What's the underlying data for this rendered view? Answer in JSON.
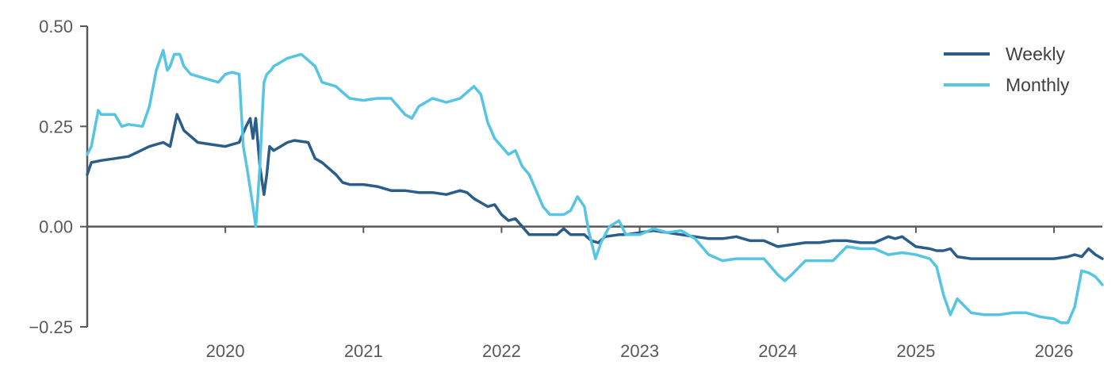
{
  "colors": {
    "weekly": "#2b5d8a",
    "monthly": "#56c4e3",
    "axis": "#595959"
  },
  "chart_data": {
    "type": "line",
    "title": "",
    "xlabel": "",
    "ylabel": "",
    "xlim": [
      2019.0,
      2026.35
    ],
    "ylim": [
      -0.25,
      0.5
    ],
    "y_ticks": [
      0.5,
      0.25,
      0.0,
      -0.25
    ],
    "y_tick_labels": [
      "0.50",
      "0.25",
      "0.00",
      "−0.25"
    ],
    "x_ticks": [
      2020,
      2021,
      2022,
      2023,
      2024,
      2025,
      2026
    ],
    "x_tick_labels": [
      "2020",
      "2021",
      "2022",
      "2023",
      "2024",
      "2025",
      "2026"
    ],
    "grid": false,
    "legend_position": "top-right",
    "series": [
      {
        "name": "Weekly",
        "color": "#2b5d8a",
        "x": [
          2019.0,
          2019.03,
          2019.1,
          2019.2,
          2019.3,
          2019.45,
          2019.55,
          2019.6,
          2019.65,
          2019.7,
          2019.8,
          2019.9,
          2020.0,
          2020.1,
          2020.15,
          2020.18,
          2020.2,
          2020.22,
          2020.25,
          2020.28,
          2020.3,
          2020.32,
          2020.35,
          2020.45,
          2020.5,
          2020.6,
          2020.65,
          2020.7,
          2020.8,
          2020.85,
          2020.9,
          2021.0,
          2021.1,
          2021.2,
          2021.3,
          2021.4,
          2021.5,
          2021.6,
          2021.7,
          2021.75,
          2021.8,
          2021.9,
          2021.95,
          2022.0,
          2022.05,
          2022.1,
          2022.2,
          2022.3,
          2022.4,
          2022.45,
          2022.5,
          2022.6,
          2022.65,
          2022.7,
          2022.75,
          2022.85,
          2022.9,
          2023.0,
          2023.1,
          2023.2,
          2023.3,
          2023.4,
          2023.5,
          2023.6,
          2023.7,
          2023.8,
          2023.9,
          2024.0,
          2024.1,
          2024.2,
          2024.3,
          2024.4,
          2024.5,
          2024.6,
          2024.7,
          2024.8,
          2024.85,
          2024.9,
          2025.0,
          2025.1,
          2025.15,
          2025.2,
          2025.25,
          2025.3,
          2025.4,
          2025.5,
          2025.6,
          2025.7,
          2025.8,
          2025.9,
          2026.0,
          2026.1,
          2026.15,
          2026.2,
          2026.25,
          2026.3,
          2026.35
        ],
        "values": [
          0.13,
          0.16,
          0.165,
          0.17,
          0.175,
          0.2,
          0.21,
          0.2,
          0.28,
          0.24,
          0.21,
          0.205,
          0.2,
          0.21,
          0.25,
          0.27,
          0.22,
          0.27,
          0.15,
          0.08,
          0.13,
          0.2,
          0.19,
          0.21,
          0.215,
          0.21,
          0.17,
          0.16,
          0.13,
          0.11,
          0.105,
          0.105,
          0.1,
          0.09,
          0.09,
          0.085,
          0.085,
          0.08,
          0.09,
          0.085,
          0.07,
          0.05,
          0.055,
          0.03,
          0.015,
          0.02,
          -0.02,
          -0.02,
          -0.02,
          -0.005,
          -0.02,
          -0.02,
          -0.035,
          -0.04,
          -0.025,
          -0.02,
          -0.02,
          -0.015,
          -0.01,
          -0.015,
          -0.02,
          -0.025,
          -0.03,
          -0.03,
          -0.025,
          -0.035,
          -0.035,
          -0.05,
          -0.045,
          -0.04,
          -0.04,
          -0.035,
          -0.035,
          -0.04,
          -0.04,
          -0.025,
          -0.03,
          -0.025,
          -0.05,
          -0.055,
          -0.06,
          -0.06,
          -0.055,
          -0.075,
          -0.08,
          -0.08,
          -0.08,
          -0.08,
          -0.08,
          -0.08,
          -0.08,
          -0.075,
          -0.07,
          -0.075,
          -0.055,
          -0.07,
          -0.08
        ]
      },
      {
        "name": "Monthly",
        "color": "#56c4e3",
        "x": [
          2019.0,
          2019.03,
          2019.08,
          2019.1,
          2019.2,
          2019.25,
          2019.3,
          2019.4,
          2019.45,
          2019.5,
          2019.55,
          2019.58,
          2019.6,
          2019.63,
          2019.67,
          2019.7,
          2019.75,
          2019.85,
          2019.95,
          2020.0,
          2020.05,
          2020.1,
          2020.13,
          2020.16,
          2020.2,
          2020.22,
          2020.25,
          2020.27,
          2020.28,
          2020.3,
          2020.33,
          2020.35,
          2020.4,
          2020.45,
          2020.55,
          2020.65,
          2020.7,
          2020.8,
          2020.9,
          2021.0,
          2021.1,
          2021.2,
          2021.3,
          2021.35,
          2021.4,
          2021.5,
          2021.6,
          2021.7,
          2021.8,
          2021.85,
          2021.9,
          2021.95,
          2022.0,
          2022.05,
          2022.1,
          2022.15,
          2022.2,
          2022.25,
          2022.3,
          2022.35,
          2022.4,
          2022.45,
          2022.5,
          2022.55,
          2022.6,
          2022.63,
          2022.68,
          2022.72,
          2022.78,
          2022.85,
          2022.9,
          2023.0,
          2023.1,
          2023.2,
          2023.3,
          2023.4,
          2023.5,
          2023.6,
          2023.7,
          2023.8,
          2023.9,
          2023.95,
          2024.0,
          2024.05,
          2024.1,
          2024.2,
          2024.3,
          2024.4,
          2024.5,
          2024.6,
          2024.7,
          2024.8,
          2024.9,
          2025.0,
          2025.05,
          2025.1,
          2025.15,
          2025.2,
          2025.25,
          2025.3,
          2025.4,
          2025.5,
          2025.6,
          2025.7,
          2025.8,
          2025.9,
          2026.0,
          2026.05,
          2026.1,
          2026.15,
          2026.2,
          2026.25,
          2026.3,
          2026.35
        ],
        "values": [
          0.18,
          0.2,
          0.29,
          0.28,
          0.28,
          0.25,
          0.255,
          0.25,
          0.3,
          0.39,
          0.44,
          0.39,
          0.4,
          0.43,
          0.43,
          0.4,
          0.38,
          0.37,
          0.36,
          0.38,
          0.385,
          0.38,
          0.2,
          0.14,
          0.05,
          0.0,
          0.15,
          0.3,
          0.36,
          0.38,
          0.39,
          0.4,
          0.41,
          0.42,
          0.43,
          0.4,
          0.36,
          0.35,
          0.32,
          0.315,
          0.32,
          0.32,
          0.28,
          0.27,
          0.3,
          0.32,
          0.31,
          0.32,
          0.35,
          0.33,
          0.26,
          0.22,
          0.2,
          0.18,
          0.19,
          0.15,
          0.13,
          0.09,
          0.05,
          0.03,
          0.03,
          0.03,
          0.04,
          0.075,
          0.05,
          -0.01,
          -0.08,
          -0.04,
          0.0,
          0.015,
          -0.02,
          -0.02,
          -0.005,
          -0.015,
          -0.01,
          -0.03,
          -0.07,
          -0.085,
          -0.08,
          -0.08,
          -0.08,
          -0.1,
          -0.12,
          -0.135,
          -0.12,
          -0.085,
          -0.085,
          -0.085,
          -0.05,
          -0.055,
          -0.055,
          -0.07,
          -0.065,
          -0.07,
          -0.075,
          -0.08,
          -0.1,
          -0.17,
          -0.22,
          -0.18,
          -0.215,
          -0.22,
          -0.22,
          -0.215,
          -0.215,
          -0.225,
          -0.23,
          -0.24,
          -0.24,
          -0.2,
          -0.11,
          -0.115,
          -0.125,
          -0.145
        ]
      }
    ]
  }
}
